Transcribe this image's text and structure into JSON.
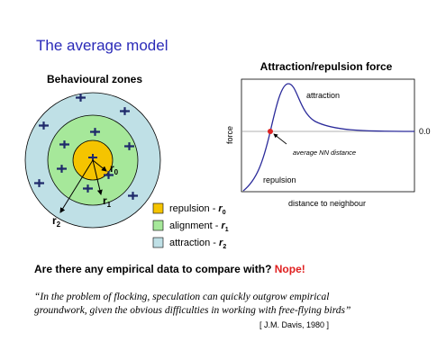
{
  "title": "The average model",
  "zones": {
    "heading": "Behavioural zones",
    "radius_labels": [
      {
        "symbol": "r",
        "sub": "0"
      },
      {
        "symbol": "r",
        "sub": "1"
      },
      {
        "symbol": "r",
        "sub": "2"
      }
    ],
    "legend": [
      {
        "text": "repulsion -",
        "symbol": "r",
        "sub": "0"
      },
      {
        "text": "alignment -",
        "symbol": "r",
        "sub": "1"
      },
      {
        "text": "attraction -",
        "symbol": "r",
        "sub": "2"
      }
    ]
  },
  "force_plot": {
    "heading": "Attraction/repulsion force",
    "y_label": "force",
    "x_label": "distance to neighbour",
    "zero_label": "0.0",
    "attraction_label": "attraction",
    "repulsion_label": "repulsion",
    "annotation": "average NN distance"
  },
  "question": {
    "text": "Are there any empirical data to compare with?",
    "answer": "Nope!"
  },
  "quote": {
    "lines": [
      "“In the problem of flocking, speculation can quickly outgrow empirical",
      "groundwork, given the obvious difficulties in working with free-flying birds”"
    ],
    "citation": "[ J.M. Davis, 1980 ]"
  }
}
